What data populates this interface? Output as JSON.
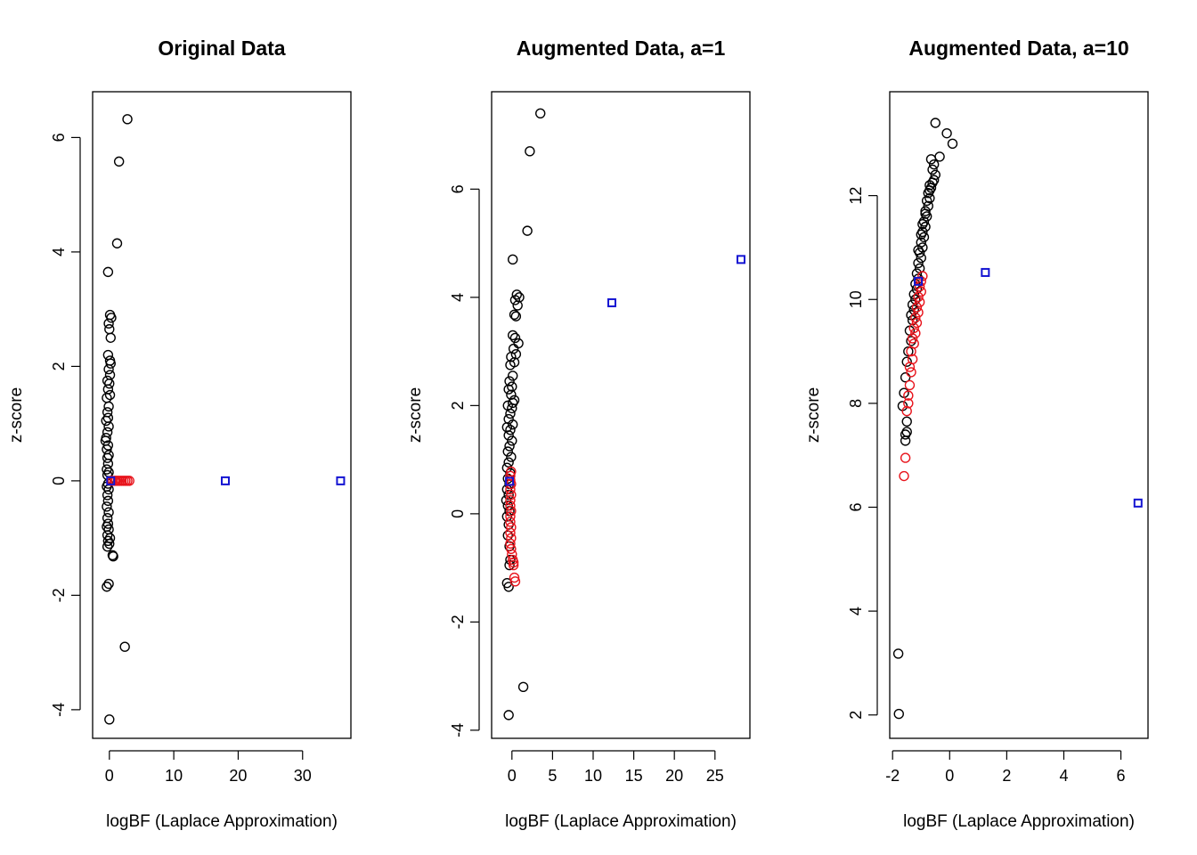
{
  "chart_data": [
    {
      "type": "scatter",
      "title": "Original Data",
      "xlabel": "logBF (Laplace Approximation)",
      "ylabel": "z-score",
      "xlim": [
        -2.6,
        37.5
      ],
      "ylim": [
        -4.5,
        6.8
      ],
      "xticks": [
        0,
        10,
        20,
        30
      ],
      "yticks": [
        -4,
        -2,
        0,
        2,
        4,
        6
      ],
      "series": [
        {
          "color": "#000000",
          "marker": "circle",
          "points": [
            [
              2.8,
              6.32
            ],
            [
              1.5,
              5.58
            ],
            [
              1.2,
              4.15
            ],
            [
              -0.2,
              3.65
            ],
            [
              0.1,
              2.9
            ],
            [
              0.3,
              2.85
            ],
            [
              -0.1,
              2.75
            ],
            [
              0.0,
              2.65
            ],
            [
              0.2,
              2.5
            ],
            [
              -0.2,
              2.2
            ],
            [
              0.1,
              2.1
            ],
            [
              0.2,
              2.05
            ],
            [
              -0.1,
              1.95
            ],
            [
              0.1,
              1.85
            ],
            [
              -0.3,
              1.75
            ],
            [
              0.0,
              1.7
            ],
            [
              -0.2,
              1.6
            ],
            [
              0.1,
              1.5
            ],
            [
              -0.4,
              1.45
            ],
            [
              -0.1,
              1.3
            ],
            [
              -0.3,
              1.2
            ],
            [
              -0.2,
              1.1
            ],
            [
              -0.5,
              1.05
            ],
            [
              -0.1,
              0.95
            ],
            [
              -0.3,
              0.85
            ],
            [
              -0.5,
              0.75
            ],
            [
              -0.6,
              0.7
            ],
            [
              -0.2,
              0.62
            ],
            [
              -0.4,
              0.55
            ],
            [
              -0.1,
              0.45
            ],
            [
              -0.3,
              0.4
            ],
            [
              -0.2,
              0.3
            ],
            [
              -0.4,
              0.2
            ],
            [
              -0.1,
              0.15
            ],
            [
              -0.3,
              0.1
            ],
            [
              -0.2,
              -0.05
            ],
            [
              -0.4,
              -0.1
            ],
            [
              -0.1,
              -0.15
            ],
            [
              -0.3,
              -0.25
            ],
            [
              -0.2,
              -0.35
            ],
            [
              -0.4,
              -0.45
            ],
            [
              -0.1,
              -0.55
            ],
            [
              -0.3,
              -0.65
            ],
            [
              -0.2,
              -0.75
            ],
            [
              -0.4,
              -0.8
            ],
            [
              -0.1,
              -0.85
            ],
            [
              -0.3,
              -0.95
            ],
            [
              -0.2,
              -1.05
            ],
            [
              0.0,
              -1.1
            ],
            [
              -0.3,
              -1.15
            ],
            [
              0.5,
              -1.3
            ],
            [
              0.6,
              -1.32
            ],
            [
              0.1,
              -1.0
            ],
            [
              -0.4,
              -1.85
            ],
            [
              -0.1,
              -1.8
            ],
            [
              2.4,
              -2.9
            ],
            [
              0.0,
              -4.17
            ]
          ]
        },
        {
          "color": "#e8141c",
          "marker": "circle",
          "points": [
            [
              0.5,
              0.0
            ],
            [
              0.8,
              0.0
            ],
            [
              1.0,
              0.0
            ],
            [
              1.3,
              0.0
            ],
            [
              1.6,
              0.0
            ],
            [
              1.9,
              0.0
            ],
            [
              2.2,
              0.0
            ],
            [
              2.5,
              0.0
            ],
            [
              2.8,
              0.0
            ],
            [
              3.1,
              0.0
            ],
            [
              0.3,
              0.0
            ]
          ]
        },
        {
          "color": "#1414d2",
          "marker": "square",
          "points": [
            [
              0.2,
              0.0
            ],
            [
              18.0,
              0.0
            ],
            [
              35.9,
              0.0
            ]
          ]
        }
      ]
    },
    {
      "type": "scatter",
      "title": "Augmented Data, a=1",
      "xlabel": "logBF (Laplace Approximation)",
      "ylabel": "z-score",
      "xlim": [
        -2.5,
        29.3
      ],
      "ylim": [
        -4.15,
        7.8
      ],
      "xticks": [
        0,
        5,
        10,
        15,
        20,
        25
      ],
      "yticks": [
        -4,
        -2,
        0,
        2,
        4,
        6
      ],
      "series": [
        {
          "color": "#000000",
          "marker": "circle",
          "points": [
            [
              3.5,
              7.4
            ],
            [
              2.2,
              6.7
            ],
            [
              1.9,
              5.23
            ],
            [
              0.1,
              4.7
            ],
            [
              0.6,
              4.05
            ],
            [
              0.9,
              4.0
            ],
            [
              0.4,
              3.95
            ],
            [
              0.7,
              3.85
            ],
            [
              0.3,
              3.68
            ],
            [
              0.5,
              3.65
            ],
            [
              0.1,
              3.3
            ],
            [
              0.4,
              3.25
            ],
            [
              0.8,
              3.15
            ],
            [
              0.2,
              3.05
            ],
            [
              0.5,
              2.95
            ],
            [
              -0.1,
              2.9
            ],
            [
              0.3,
              2.8
            ],
            [
              -0.2,
              2.75
            ],
            [
              0.1,
              2.55
            ],
            [
              -0.3,
              2.45
            ],
            [
              0.0,
              2.35
            ],
            [
              -0.4,
              2.3
            ],
            [
              -0.1,
              2.2
            ],
            [
              0.3,
              2.1
            ],
            [
              0.1,
              2.05
            ],
            [
              -0.5,
              2.0
            ],
            [
              0.0,
              1.95
            ],
            [
              -0.2,
              1.85
            ],
            [
              -0.4,
              1.75
            ],
            [
              0.1,
              1.65
            ],
            [
              -0.6,
              1.6
            ],
            [
              -0.2,
              1.55
            ],
            [
              -0.4,
              1.45
            ],
            [
              0.0,
              1.35
            ],
            [
              -0.3,
              1.25
            ],
            [
              -0.5,
              1.15
            ],
            [
              -0.1,
              1.05
            ],
            [
              -0.4,
              0.95
            ],
            [
              -0.6,
              0.85
            ],
            [
              -0.2,
              0.75
            ],
            [
              -0.5,
              0.65
            ],
            [
              -0.3,
              0.55
            ],
            [
              -0.6,
              0.45
            ],
            [
              -0.4,
              0.35
            ],
            [
              -0.7,
              0.25
            ],
            [
              -0.5,
              0.15
            ],
            [
              -0.3,
              0.05
            ],
            [
              -0.6,
              -0.05
            ],
            [
              -0.4,
              -0.2
            ],
            [
              -0.5,
              -0.4
            ],
            [
              -0.3,
              -0.6
            ],
            [
              -0.2,
              -0.85
            ],
            [
              -0.3,
              -0.95
            ],
            [
              -0.6,
              -1.28
            ],
            [
              -0.4,
              -1.35
            ],
            [
              1.4,
              -3.2
            ],
            [
              -0.4,
              -3.72
            ]
          ]
        },
        {
          "color": "#e8141c",
          "marker": "circle",
          "points": [
            [
              -0.1,
              0.78
            ],
            [
              -0.2,
              0.7
            ],
            [
              -0.2,
              0.62
            ],
            [
              -0.1,
              0.55
            ],
            [
              -0.2,
              0.45
            ],
            [
              -0.1,
              0.35
            ],
            [
              -0.2,
              0.25
            ],
            [
              -0.2,
              0.15
            ],
            [
              -0.1,
              0.05
            ],
            [
              -0.2,
              -0.05
            ],
            [
              -0.2,
              -0.15
            ],
            [
              -0.1,
              -0.25
            ],
            [
              -0.2,
              -0.35
            ],
            [
              -0.1,
              -0.45
            ],
            [
              -0.2,
              -0.55
            ],
            [
              -0.1,
              -0.65
            ],
            [
              0.0,
              -0.75
            ],
            [
              0.1,
              -0.85
            ],
            [
              0.2,
              -0.95
            ],
            [
              0.3,
              -1.18
            ],
            [
              0.4,
              -1.25
            ],
            [
              0.2,
              -0.9
            ]
          ]
        },
        {
          "color": "#1414d2",
          "marker": "square",
          "points": [
            [
              -0.3,
              0.6
            ],
            [
              12.3,
              3.9
            ],
            [
              28.2,
              4.7
            ]
          ]
        }
      ]
    },
    {
      "type": "scatter",
      "title": "Augmented Data, a=10",
      "xlabel": "logBF (Laplace Approximation)",
      "ylabel": "z-score",
      "xlim": [
        -2.1,
        6.95
      ],
      "ylim": [
        1.55,
        14.0
      ],
      "xticks": [
        -2,
        0,
        2,
        4,
        6
      ],
      "yticks": [
        2,
        4,
        6,
        8,
        10,
        12
      ],
      "series": [
        {
          "color": "#000000",
          "marker": "circle",
          "points": [
            [
              -0.5,
              13.4
            ],
            [
              -0.1,
              13.2
            ],
            [
              0.1,
              13.0
            ],
            [
              -0.35,
              12.75
            ],
            [
              -0.65,
              12.7
            ],
            [
              -0.55,
              12.6
            ],
            [
              -0.6,
              12.5
            ],
            [
              -0.5,
              12.4
            ],
            [
              -0.55,
              12.3
            ],
            [
              -0.6,
              12.25
            ],
            [
              -0.65,
              12.15
            ],
            [
              -0.7,
              12.1
            ],
            [
              -0.75,
              12.05
            ],
            [
              -0.7,
              11.95
            ],
            [
              -0.8,
              11.9
            ],
            [
              -0.75,
              11.8
            ],
            [
              -0.85,
              11.7
            ],
            [
              -0.8,
              11.6
            ],
            [
              -0.9,
              11.5
            ],
            [
              -0.85,
              11.4
            ],
            [
              -0.95,
              11.3
            ],
            [
              -0.9,
              11.2
            ],
            [
              -1.0,
              11.1
            ],
            [
              -0.95,
              11.0
            ],
            [
              -1.05,
              10.9
            ],
            [
              -1.0,
              10.8
            ],
            [
              -1.1,
              10.7
            ],
            [
              -1.05,
              10.6
            ],
            [
              -1.15,
              10.5
            ],
            [
              -1.1,
              10.4
            ],
            [
              -1.2,
              10.3
            ],
            [
              -1.15,
              10.2
            ],
            [
              -1.25,
              10.1
            ],
            [
              -1.2,
              10.0
            ],
            [
              -1.3,
              9.9
            ],
            [
              -1.25,
              9.8
            ],
            [
              -1.35,
              9.7
            ],
            [
              -1.3,
              9.6
            ],
            [
              -1.4,
              9.4
            ],
            [
              -1.35,
              9.2
            ],
            [
              -1.45,
              9.0
            ],
            [
              -1.5,
              8.8
            ],
            [
              -1.55,
              8.5
            ],
            [
              -1.6,
              8.2
            ],
            [
              -1.65,
              7.95
            ],
            [
              -1.5,
              7.65
            ],
            [
              -1.5,
              7.45
            ],
            [
              -1.55,
              7.4
            ],
            [
              -1.55,
              7.28
            ],
            [
              -0.85,
              11.65
            ],
            [
              -0.95,
              11.45
            ],
            [
              -1.0,
              11.25
            ],
            [
              -1.1,
              10.95
            ],
            [
              -0.7,
              12.2
            ],
            [
              -1.8,
              3.18
            ],
            [
              -1.78,
              2.02
            ]
          ]
        },
        {
          "color": "#e8141c",
          "marker": "circle",
          "points": [
            [
              -0.95,
              10.45
            ],
            [
              -1.0,
              10.35
            ],
            [
              -1.05,
              10.25
            ],
            [
              -1.0,
              10.15
            ],
            [
              -1.1,
              10.05
            ],
            [
              -1.05,
              9.95
            ],
            [
              -1.15,
              9.85
            ],
            [
              -1.1,
              9.75
            ],
            [
              -1.2,
              9.65
            ],
            [
              -1.15,
              9.55
            ],
            [
              -1.25,
              9.45
            ],
            [
              -1.2,
              9.35
            ],
            [
              -1.3,
              9.25
            ],
            [
              -1.25,
              9.15
            ],
            [
              -1.35,
              9.0
            ],
            [
              -1.3,
              8.85
            ],
            [
              -1.4,
              8.7
            ],
            [
              -1.35,
              8.6
            ],
            [
              -1.4,
              8.35
            ],
            [
              -1.45,
              8.15
            ],
            [
              -1.45,
              8.0
            ],
            [
              -1.5,
              7.85
            ],
            [
              -1.55,
              6.95
            ],
            [
              -1.6,
              6.6
            ]
          ]
        },
        {
          "color": "#1414d2",
          "marker": "square",
          "points": [
            [
              -1.1,
              10.35
            ],
            [
              1.25,
              10.52
            ],
            [
              6.6,
              6.08
            ]
          ]
        }
      ]
    }
  ]
}
